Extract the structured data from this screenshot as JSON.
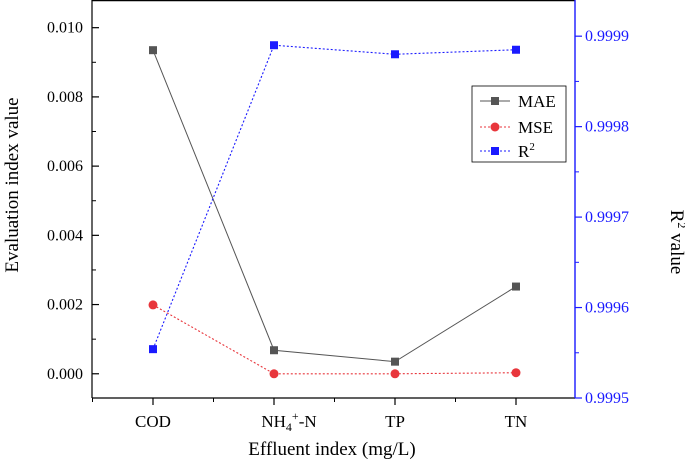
{
  "chart_data": {
    "type": "line",
    "categories": [
      "COD",
      "NH4+-N",
      "TP",
      "TN"
    ],
    "x_tick_labels": {
      "COD": "COD",
      "NH4": {
        "base": "NH",
        "sub": "4",
        "sup": "+",
        "suffix": "-N"
      },
      "TP": "TP",
      "TN": "TN"
    },
    "xlabel": "Effluent index (mg/L)",
    "ylabel": "Evaluation index value",
    "y2label": {
      "base": "R",
      "sup": "2",
      "suffix": " value"
    },
    "ylim": [
      -0.0007,
      0.0108
    ],
    "yticks": [
      0.0,
      0.002,
      0.004,
      0.006,
      0.008,
      0.01
    ],
    "ytick_labels": [
      "0.000",
      "0.002",
      "0.004",
      "0.006",
      "0.008",
      "0.010"
    ],
    "y2lim": [
      0.9995,
      0.99994
    ],
    "y2ticks": [
      0.9995,
      0.9996,
      0.9997,
      0.9998,
      0.9999
    ],
    "y2tick_labels": [
      "0.9995",
      "0.9996",
      "0.9997",
      "0.9998",
      "0.9999"
    ],
    "series": [
      {
        "name": "MAE",
        "axis": "left",
        "color": "#555555",
        "marker": "square",
        "line": "solid",
        "values": [
          0.00935,
          0.00068,
          0.00035,
          0.00252
        ]
      },
      {
        "name": "MSE",
        "axis": "left",
        "color": "#e8363c",
        "marker": "circle",
        "line": "dotted",
        "values": [
          0.00199,
          0.0,
          0.0,
          3e-05
        ]
      },
      {
        "name": "R2",
        "axis": "right",
        "color": "#1a1aff",
        "marker": "square",
        "line": "dotted",
        "values": [
          0.999554,
          0.99989,
          0.99988,
          0.999885
        ]
      }
    ],
    "legend": {
      "placement": "upper-right",
      "items": [
        {
          "label": "MAE"
        },
        {
          "label": "MSE"
        },
        {
          "label": "R",
          "sup": "2"
        }
      ]
    },
    "colors": {
      "left_axis": "#000000",
      "right_axis": "#1a1aff"
    }
  }
}
